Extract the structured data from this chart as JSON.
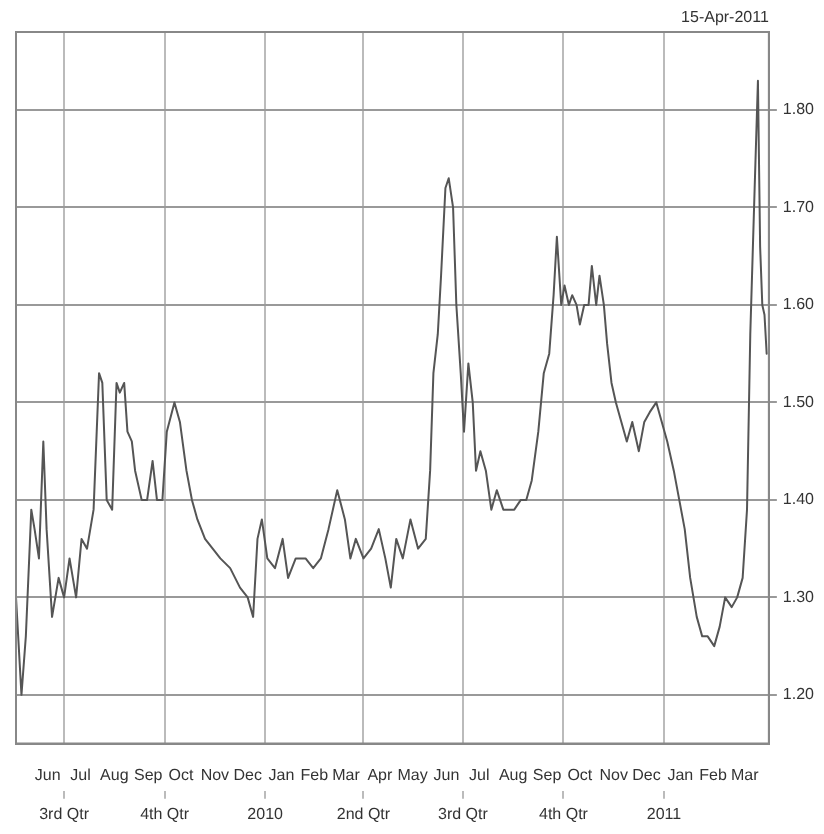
{
  "chart_data": {
    "type": "line",
    "annotations": [
      "15-Apr-2011"
    ],
    "x": [
      "2009-05-18",
      "2009-05-23",
      "2009-05-27",
      "2009-06-01",
      "2009-06-04",
      "2009-06-08",
      "2009-06-12",
      "2009-06-15",
      "2009-06-20",
      "2009-06-26",
      "2009-07-01",
      "2009-07-06",
      "2009-07-12",
      "2009-07-17",
      "2009-07-22",
      "2009-07-28",
      "2009-08-02",
      "2009-08-05",
      "2009-08-09",
      "2009-08-14",
      "2009-08-18",
      "2009-08-21",
      "2009-08-25",
      "2009-08-28",
      "2009-09-01",
      "2009-09-04",
      "2009-09-10",
      "2009-09-15",
      "2009-09-20",
      "2009-09-24",
      "2009-09-29",
      "2009-10-03",
      "2009-10-10",
      "2009-10-15",
      "2009-10-21",
      "2009-10-26",
      "2009-10-31",
      "2009-11-07",
      "2009-11-14",
      "2009-11-21",
      "2009-11-30",
      "2009-12-09",
      "2009-12-16",
      "2009-12-21",
      "2009-12-25",
      "2009-12-29",
      "2010-01-03",
      "2010-01-10",
      "2010-01-17",
      "2010-01-22",
      "2010-01-29",
      "2010-02-07",
      "2010-02-14",
      "2010-02-21",
      "2010-02-28",
      "2010-03-08",
      "2010-03-15",
      "2010-03-20",
      "2010-03-25",
      "2010-04-01",
      "2010-04-08",
      "2010-04-15",
      "2010-04-21",
      "2010-04-26",
      "2010-05-01",
      "2010-05-07",
      "2010-05-14",
      "2010-05-21",
      "2010-05-28",
      "2010-06-01",
      "2010-06-04",
      "2010-06-08",
      "2010-06-11",
      "2010-06-15",
      "2010-06-18",
      "2010-06-22",
      "2010-06-25",
      "2010-06-29",
      "2010-07-02",
      "2010-07-06",
      "2010-07-10",
      "2010-07-13",
      "2010-07-17",
      "2010-07-22",
      "2010-07-27",
      "2010-08-01",
      "2010-08-07",
      "2010-08-12",
      "2010-08-17",
      "2010-08-23",
      "2010-08-28",
      "2010-09-02",
      "2010-09-08",
      "2010-09-13",
      "2010-09-18",
      "2010-09-22",
      "2010-09-25",
      "2010-09-29",
      "2010-10-02",
      "2010-10-06",
      "2010-10-09",
      "2010-10-13",
      "2010-10-16",
      "2010-10-20",
      "2010-10-24",
      "2010-10-27",
      "2010-10-31",
      "2010-11-03",
      "2010-11-07",
      "2010-11-10",
      "2010-11-14",
      "2010-11-18",
      "2010-11-23",
      "2010-11-28",
      "2010-12-03",
      "2010-12-09",
      "2010-12-14",
      "2010-12-19",
      "2010-12-25",
      "2010-12-30",
      "2011-01-04",
      "2011-01-10",
      "2011-01-15",
      "2011-01-20",
      "2011-01-25",
      "2011-01-31",
      "2011-02-05",
      "2011-02-10",
      "2011-02-16",
      "2011-02-21",
      "2011-02-26",
      "2011-03-04",
      "2011-03-09",
      "2011-03-14",
      "2011-03-18",
      "2011-03-21",
      "2011-03-25",
      "2011-03-28",
      "2011-03-30",
      "2011-04-01",
      "2011-04-03",
      "2011-04-05"
    ],
    "series": [
      {
        "color": "#555555",
        "values": [
          1.3,
          1.2,
          1.26,
          1.39,
          1.37,
          1.34,
          1.46,
          1.37,
          1.28,
          1.32,
          1.3,
          1.34,
          1.3,
          1.36,
          1.35,
          1.39,
          1.53,
          1.52,
          1.4,
          1.39,
          1.52,
          1.51,
          1.52,
          1.47,
          1.46,
          1.43,
          1.4,
          1.4,
          1.44,
          1.4,
          1.4,
          1.47,
          1.5,
          1.48,
          1.43,
          1.4,
          1.38,
          1.36,
          1.35,
          1.34,
          1.33,
          1.31,
          1.3,
          1.28,
          1.36,
          1.38,
          1.34,
          1.33,
          1.36,
          1.32,
          1.34,
          1.34,
          1.33,
          1.34,
          1.37,
          1.41,
          1.38,
          1.34,
          1.36,
          1.34,
          1.35,
          1.37,
          1.34,
          1.31,
          1.36,
          1.34,
          1.38,
          1.35,
          1.36,
          1.43,
          1.53,
          1.57,
          1.63,
          1.72,
          1.73,
          1.7,
          1.6,
          1.53,
          1.47,
          1.54,
          1.5,
          1.43,
          1.45,
          1.43,
          1.39,
          1.41,
          1.39,
          1.39,
          1.39,
          1.4,
          1.4,
          1.42,
          1.47,
          1.53,
          1.55,
          1.61,
          1.67,
          1.6,
          1.62,
          1.6,
          1.61,
          1.6,
          1.58,
          1.6,
          1.6,
          1.64,
          1.6,
          1.63,
          1.6,
          1.56,
          1.52,
          1.5,
          1.48,
          1.46,
          1.48,
          1.45,
          1.48,
          1.49,
          1.5,
          1.48,
          1.46,
          1.43,
          1.4,
          1.37,
          1.32,
          1.28,
          1.26,
          1.26,
          1.25,
          1.27,
          1.3,
          1.29,
          1.3,
          1.32,
          1.39,
          1.57,
          1.72,
          1.83,
          1.66,
          1.6,
          1.59,
          1.55
        ]
      }
    ],
    "xlim": [
      "2009-05-18",
      "2011-04-07"
    ],
    "xticks": [
      {
        "value": "2009-06-16",
        "label": "Jun"
      },
      {
        "value": "2009-07-16",
        "label": "Jul"
      },
      {
        "value": "2009-08-16",
        "label": "Aug"
      },
      {
        "value": "2009-09-16",
        "label": "Sep"
      },
      {
        "value": "2009-10-16",
        "label": "Oct"
      },
      {
        "value": "2009-11-16",
        "label": "Nov"
      },
      {
        "value": "2009-12-16",
        "label": "Dec"
      },
      {
        "value": "2010-01-16",
        "label": "Jan"
      },
      {
        "value": "2010-02-15",
        "label": "Feb"
      },
      {
        "value": "2010-03-16",
        "label": "Mar"
      },
      {
        "value": "2010-04-16",
        "label": "Apr"
      },
      {
        "value": "2010-05-16",
        "label": "May"
      },
      {
        "value": "2010-06-16",
        "label": "Jun"
      },
      {
        "value": "2010-07-16",
        "label": "Jul"
      },
      {
        "value": "2010-08-16",
        "label": "Aug"
      },
      {
        "value": "2010-09-16",
        "label": "Sep"
      },
      {
        "value": "2010-10-16",
        "label": "Oct"
      },
      {
        "value": "2010-11-16",
        "label": "Nov"
      },
      {
        "value": "2010-12-16",
        "label": "Dec"
      },
      {
        "value": "2011-01-16",
        "label": "Jan"
      },
      {
        "value": "2011-02-15",
        "label": "Feb"
      },
      {
        "value": "2011-03-16",
        "label": "Mar"
      }
    ],
    "x2lim": [
      "2009-05-18",
      "2011-04-07"
    ],
    "x2ticks": [
      {
        "value": "2009-07-01",
        "label": "3rd Qtr"
      },
      {
        "value": "2009-10-01",
        "label": "4th Qtr"
      },
      {
        "value": "2010-01-01",
        "label": "2010"
      },
      {
        "value": "2010-04-01",
        "label": "2nd Qtr"
      },
      {
        "value": "2010-07-01",
        "label": "3rd Qtr"
      },
      {
        "value": "2010-10-01",
        "label": "4th Qtr"
      },
      {
        "value": "2011-01-01",
        "label": "2011"
      }
    ],
    "ylim": [
      1.15,
      1.88
    ],
    "yticks": [
      {
        "value": 1.2,
        "label": "1.20"
      },
      {
        "value": 1.3,
        "label": "1.30"
      },
      {
        "value": 1.4,
        "label": "1.40"
      },
      {
        "value": 1.5,
        "label": "1.50"
      },
      {
        "value": 1.6,
        "label": "1.60"
      },
      {
        "value": 1.7,
        "label": "1.70"
      },
      {
        "value": 1.8,
        "label": "1.80"
      }
    ],
    "grid": true,
    "legend": false,
    "marker": "none",
    "line_style": "solid"
  }
}
